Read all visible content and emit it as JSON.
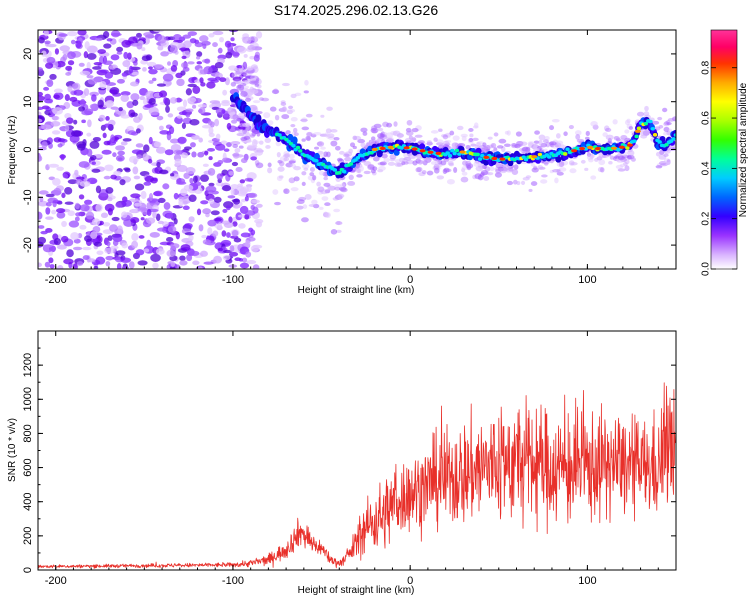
{
  "title": "S174.2025.296.02.13.G26",
  "chart_data": [
    {
      "type": "heatmap",
      "name": "spectrogram",
      "xlabel": "Height of straight line (km)",
      "ylabel": "Frequency (Hz)",
      "xlim": [
        -210,
        150
      ],
      "ylim": [
        -25,
        25
      ],
      "xticks": [
        -200,
        -100,
        0,
        100
      ],
      "yticks": [
        20,
        10,
        0,
        -10,
        -20
      ],
      "ridge": {
        "x": [
          -100,
          -90,
          -80,
          -70,
          -60,
          -50,
          -40,
          -30,
          -20,
          -10,
          0,
          10,
          20,
          30,
          40,
          50,
          60,
          70,
          80,
          90,
          100,
          110,
          120,
          125,
          130,
          135,
          140,
          145,
          150
        ],
        "y": [
          11,
          7,
          4,
          2,
          -1,
          -3,
          -5,
          -2,
          0,
          0.5,
          0.3,
          -0.5,
          -1,
          -0.5,
          -1.5,
          -2,
          -2,
          -1.5,
          -1,
          -0.5,
          0.5,
          0,
          0.5,
          1,
          5,
          6,
          1,
          1,
          3
        ]
      },
      "colorbar": {
        "label": "Normalized spectral amplitude",
        "ticks": [
          0.0,
          0.2,
          0.4,
          0.6,
          0.8
        ],
        "range": [
          0,
          0.95
        ],
        "colors": [
          "#ffffff",
          "#c080ff",
          "#8000ff",
          "#0000ff",
          "#00c0ff",
          "#00ff80",
          "#40ff00",
          "#c0ff00",
          "#ffff00",
          "#ffa000",
          "#ff2000",
          "#ff0080",
          "#ff40c0"
        ]
      }
    },
    {
      "type": "line",
      "name": "snr",
      "xlabel": "Height of straight line (km)",
      "ylabel": "SNR (10 * v/v)",
      "xlim": [
        -210,
        150
      ],
      "ylim": [
        0,
        1400
      ],
      "xticks": [
        -200,
        -100,
        0,
        100
      ],
      "yticks": [
        0,
        200,
        400,
        600,
        800,
        1000,
        1200
      ],
      "line_color": "#e8302a",
      "envelope": {
        "x": [
          -210,
          -100,
          -90,
          -80,
          -70,
          -62,
          -55,
          -50,
          -45,
          -40,
          -35,
          -30,
          -25,
          -20,
          -15,
          -10,
          -5,
          0,
          10,
          20,
          30,
          40,
          50,
          60,
          70,
          80,
          90,
          100,
          110,
          120,
          130,
          140,
          145,
          150
        ],
        "mean": [
          20,
          30,
          40,
          60,
          120,
          230,
          150,
          130,
          60,
          40,
          80,
          170,
          250,
          290,
          320,
          380,
          420,
          450,
          500,
          540,
          560,
          600,
          620,
          630,
          620,
          600,
          590,
          600,
          620,
          610,
          600,
          600,
          750,
          650
        ],
        "spread": [
          8,
          12,
          20,
          30,
          50,
          80,
          60,
          40,
          30,
          20,
          40,
          90,
          130,
          170,
          190,
          200,
          200,
          200,
          220,
          260,
          280,
          300,
          320,
          330,
          320,
          300,
          300,
          300,
          280,
          260,
          250,
          280,
          350,
          300
        ]
      }
    }
  ]
}
